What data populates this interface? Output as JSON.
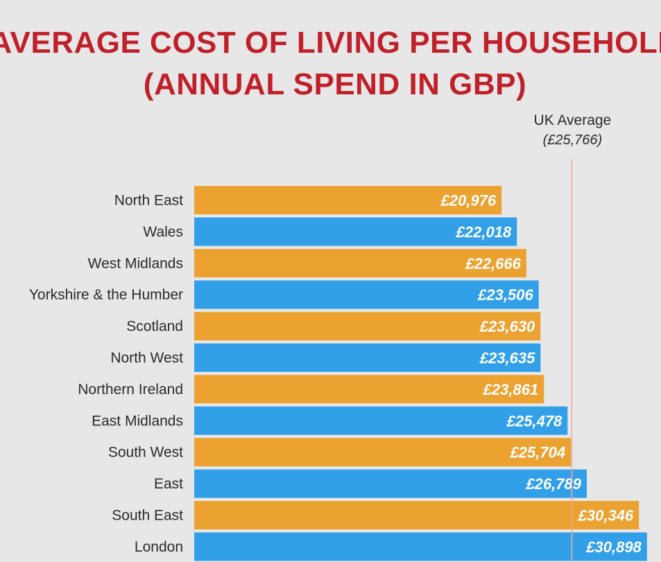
{
  "chart_data": {
    "type": "bar",
    "orientation": "horizontal",
    "title": "AVERAGE COST OF LIVING PER HOUSEHOLD",
    "subtitle": "(ANNUAL SPEND IN GBP)",
    "categories": [
      "North East",
      "Wales",
      "West Midlands",
      "Yorkshire & the Humber",
      "Scotland",
      "North West",
      "Northern Ireland",
      "East Midlands",
      "South West",
      "East",
      "South East",
      "London"
    ],
    "values": [
      20976,
      22018,
      22666,
      23506,
      23630,
      23635,
      23861,
      25478,
      25704,
      26789,
      30346,
      30898
    ],
    "value_labels": [
      "£20,976",
      "£22,018",
      "£22,666",
      "£23,506",
      "£23,630",
      "£23,635",
      "£23,861",
      "£25,478",
      "£25,704",
      "£26,789",
      "£30,346",
      "£30,898"
    ],
    "reference_line": {
      "label": "UK Average",
      "value_label": "(£25,766)",
      "value": 25766
    },
    "xlim": [
      0,
      31000
    ],
    "xlabel": "",
    "ylabel": "",
    "grid": false,
    "legend": "none"
  },
  "colors": {
    "background": "#e8e7e8",
    "title": "#c0202a",
    "bar_odd": "#eba231",
    "bar_even": "#32a0e8",
    "reference_line": "#f3a79a",
    "label_text": "#2b2b2b",
    "value_text": "#ffffff"
  }
}
